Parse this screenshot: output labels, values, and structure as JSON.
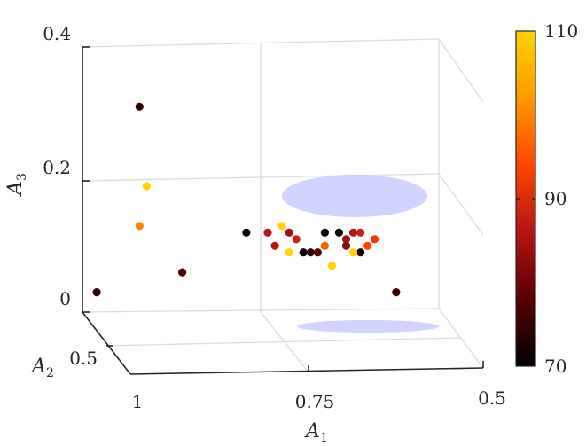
{
  "chart_data": {
    "type": "scatter",
    "projection": "3d",
    "grid": true,
    "axes": {
      "x": {
        "label": "A",
        "label_sub": "1",
        "ticks": [
          "1",
          "0.75",
          "0.5"
        ]
      },
      "y": {
        "label": "A",
        "label_sub": "2",
        "ticks": [
          "0.5"
        ]
      },
      "z": {
        "label": "A",
        "label_sub": "3",
        "ticks": [
          "0",
          "0.2",
          "0.4"
        ],
        "range": [
          0,
          0.4
        ]
      }
    },
    "colorbar": {
      "position": "right",
      "colormap": "hot",
      "range": [
        70,
        110
      ],
      "ticks": [
        "70",
        "90",
        "110"
      ],
      "colors": [
        "#000000",
        "#5a0000",
        "#b41414",
        "#ff4500",
        "#ff9a00",
        "#ffd200"
      ]
    },
    "cluster_ellipse_color": "#aab0ff",
    "points": [
      {
        "a1": 0.92,
        "a3": 0.31,
        "value": 74
      },
      {
        "a1": 0.91,
        "a3": 0.19,
        "value": 110
      },
      {
        "a1": 0.92,
        "a3": 0.13,
        "value": 100
      },
      {
        "a1": 0.98,
        "a3": 0.03,
        "value": 73
      },
      {
        "a1": 0.86,
        "a3": 0.06,
        "value": 77
      },
      {
        "a1": 0.56,
        "a3": 0.03,
        "value": 75
      },
      {
        "a1": 0.77,
        "a3": 0.12,
        "value": 70
      },
      {
        "a1": 0.74,
        "a3": 0.12,
        "value": 86
      },
      {
        "a1": 0.72,
        "a3": 0.13,
        "value": 110
      },
      {
        "a1": 0.71,
        "a3": 0.12,
        "value": 84
      },
      {
        "a1": 0.7,
        "a3": 0.11,
        "value": 88
      },
      {
        "a1": 0.66,
        "a3": 0.12,
        "value": 70
      },
      {
        "a1": 0.64,
        "a3": 0.12,
        "value": 70
      },
      {
        "a1": 0.63,
        "a3": 0.11,
        "value": 84
      },
      {
        "a1": 0.62,
        "a3": 0.12,
        "value": 86
      },
      {
        "a1": 0.61,
        "a3": 0.12,
        "value": 88
      },
      {
        "a1": 0.59,
        "a3": 0.11,
        "value": 92
      },
      {
        "a1": 0.73,
        "a3": 0.1,
        "value": 86
      },
      {
        "a1": 0.71,
        "a3": 0.09,
        "value": 110
      },
      {
        "a1": 0.69,
        "a3": 0.09,
        "value": 70
      },
      {
        "a1": 0.68,
        "a3": 0.09,
        "value": 74
      },
      {
        "a1": 0.67,
        "a3": 0.09,
        "value": 77
      },
      {
        "a1": 0.66,
        "a3": 0.1,
        "value": 96
      },
      {
        "a1": 0.63,
        "a3": 0.1,
        "value": 82
      },
      {
        "a1": 0.62,
        "a3": 0.09,
        "value": 108
      },
      {
        "a1": 0.61,
        "a3": 0.09,
        "value": 72
      },
      {
        "a1": 0.62,
        "a3": 0.09,
        "value": 110
      },
      {
        "a1": 0.65,
        "a3": 0.07,
        "value": 110
      },
      {
        "a1": 0.6,
        "a3": 0.1,
        "value": 94
      }
    ]
  }
}
